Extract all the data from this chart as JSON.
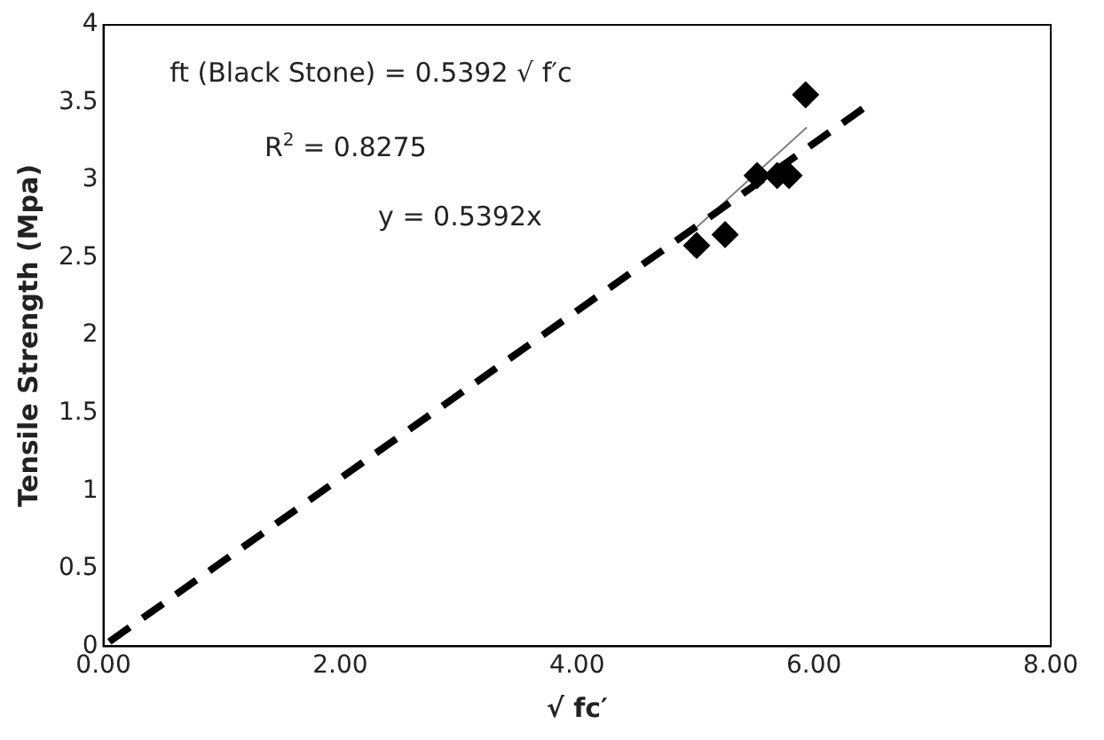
{
  "chart_data": {
    "type": "scatter",
    "xlabel": "√ fc′",
    "ylabel": "Tensile Strength (Mpa)",
    "series": [
      {
        "color": "#000000",
        "marker": "diamond",
        "x": [
          5.01,
          5.25,
          5.52,
          5.69,
          5.79,
          5.93
        ],
        "values": [
          2.58,
          2.65,
          3.03,
          3.03,
          3.03,
          3.55
        ]
      },
      {
        "type": "line",
        "color": "#000000",
        "line_style": "dashed",
        "marker": "none",
        "x": [
          0.05,
          6.45
        ],
        "values": [
          0.03,
          3.48
        ]
      },
      {
        "type": "line",
        "color": "#808080",
        "line_style": "solid",
        "marker": "none",
        "x": [
          5.0,
          5.94
        ],
        "values": [
          2.69,
          3.34
        ]
      }
    ],
    "annotations": [
      "ft (Black Stone) = 0.5392 √ f′c",
      "R$^{2}$ = 0.8275",
      "y = 0.5392x"
    ],
    "xlim": [
      0,
      8
    ],
    "xticks": [
      {
        "value": 0,
        "label": "0.00"
      },
      {
        "value": 2,
        "label": "2.00"
      },
      {
        "value": 4,
        "label": "4.00"
      },
      {
        "value": 6,
        "label": "6.00"
      },
      {
        "value": 8,
        "label": "8.00"
      }
    ],
    "ylim": [
      0,
      4
    ],
    "yticks": [
      0,
      0.5,
      1,
      1.5,
      2,
      2.5,
      3,
      3.5,
      4
    ],
    "grid": false,
    "legend": false
  }
}
